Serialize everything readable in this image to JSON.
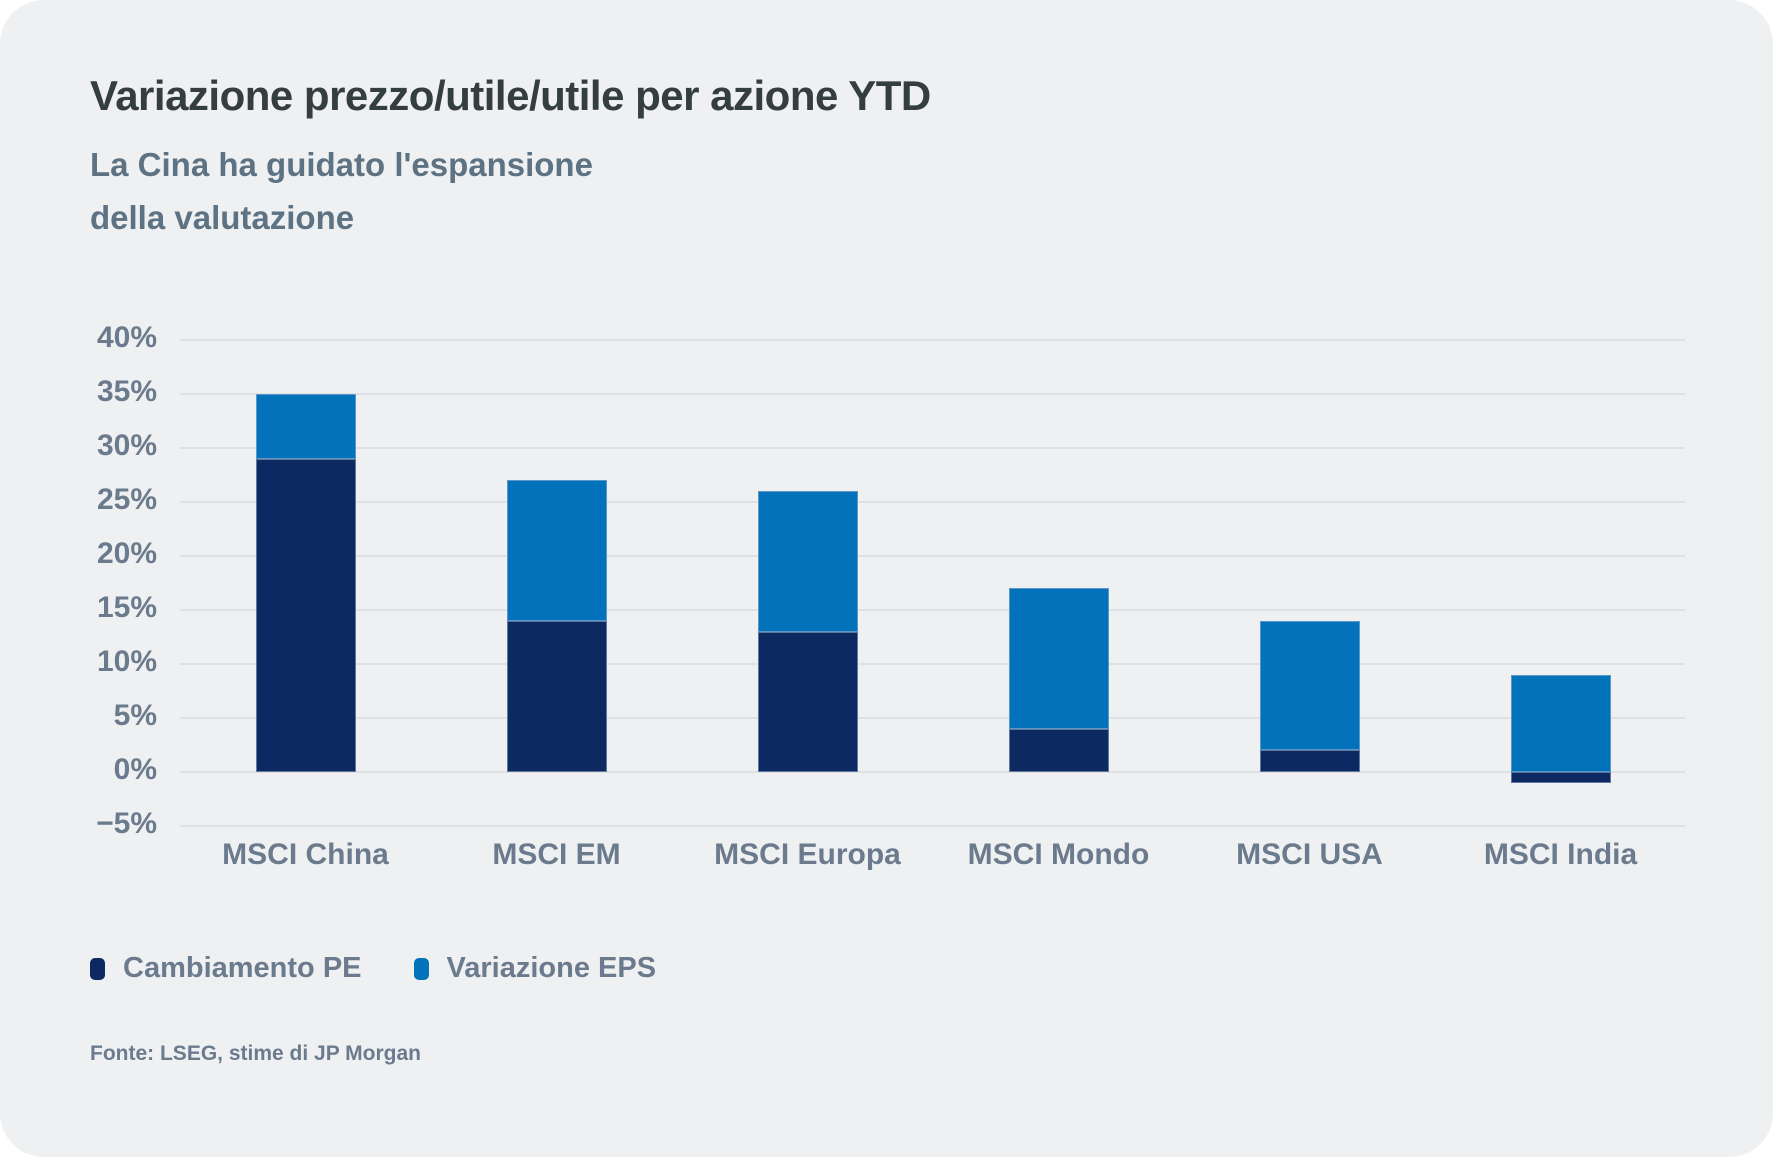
{
  "card": {
    "title": "Variazione prezzo/utile/utile per azione YTD",
    "subtitle_line1": "La Cina ha guidato l'espansione",
    "subtitle_line2": "della valutazione",
    "source": "Fonte: LSEG, stime di JP Morgan"
  },
  "colors": {
    "card_background": "#eef0f2",
    "title_text": "#333e3d",
    "subtitle_text": "#5d7282",
    "axis_text": "#6b7b8d",
    "gridline": "#dee0e3",
    "pe_navy": "#0c2a61",
    "eps_blue": "#0272bb"
  },
  "legend": {
    "pe_label": "Cambiamento PE",
    "eps_label": "Variazione EPS"
  },
  "chart_data": {
    "type": "bar",
    "stacked": true,
    "title": "Variazione prezzo/utile/utile per azione YTD",
    "subtitle": "La Cina ha guidato l'espansione della valutazione",
    "categories": [
      "MSCI China",
      "MSCI EM",
      "MSCI Europa",
      "MSCI Mondo",
      "MSCI USA",
      "MSCI India"
    ],
    "series": [
      {
        "name": "Cambiamento PE",
        "color": "#0c2a61",
        "values": [
          29,
          14,
          13,
          4,
          2,
          -1
        ]
      },
      {
        "name": "Variazione EPS",
        "color": "#0272bb",
        "values": [
          6,
          13,
          13,
          13,
          12,
          9
        ]
      }
    ],
    "totals": [
      35,
      27,
      26,
      17,
      14,
      8
    ],
    "y_ticks": [
      "40%",
      "35%",
      "30%",
      "25%",
      "20%",
      "15%",
      "10%",
      "5%",
      "0%",
      "−5%"
    ],
    "y_tick_values": [
      40,
      35,
      30,
      25,
      20,
      15,
      10,
      5,
      0,
      -5
    ],
    "ylim": [
      -5,
      40
    ],
    "unit": "%",
    "grid": true,
    "legend_position": "bottom-left",
    "source": "Fonte: LSEG, stime di JP Morgan"
  }
}
